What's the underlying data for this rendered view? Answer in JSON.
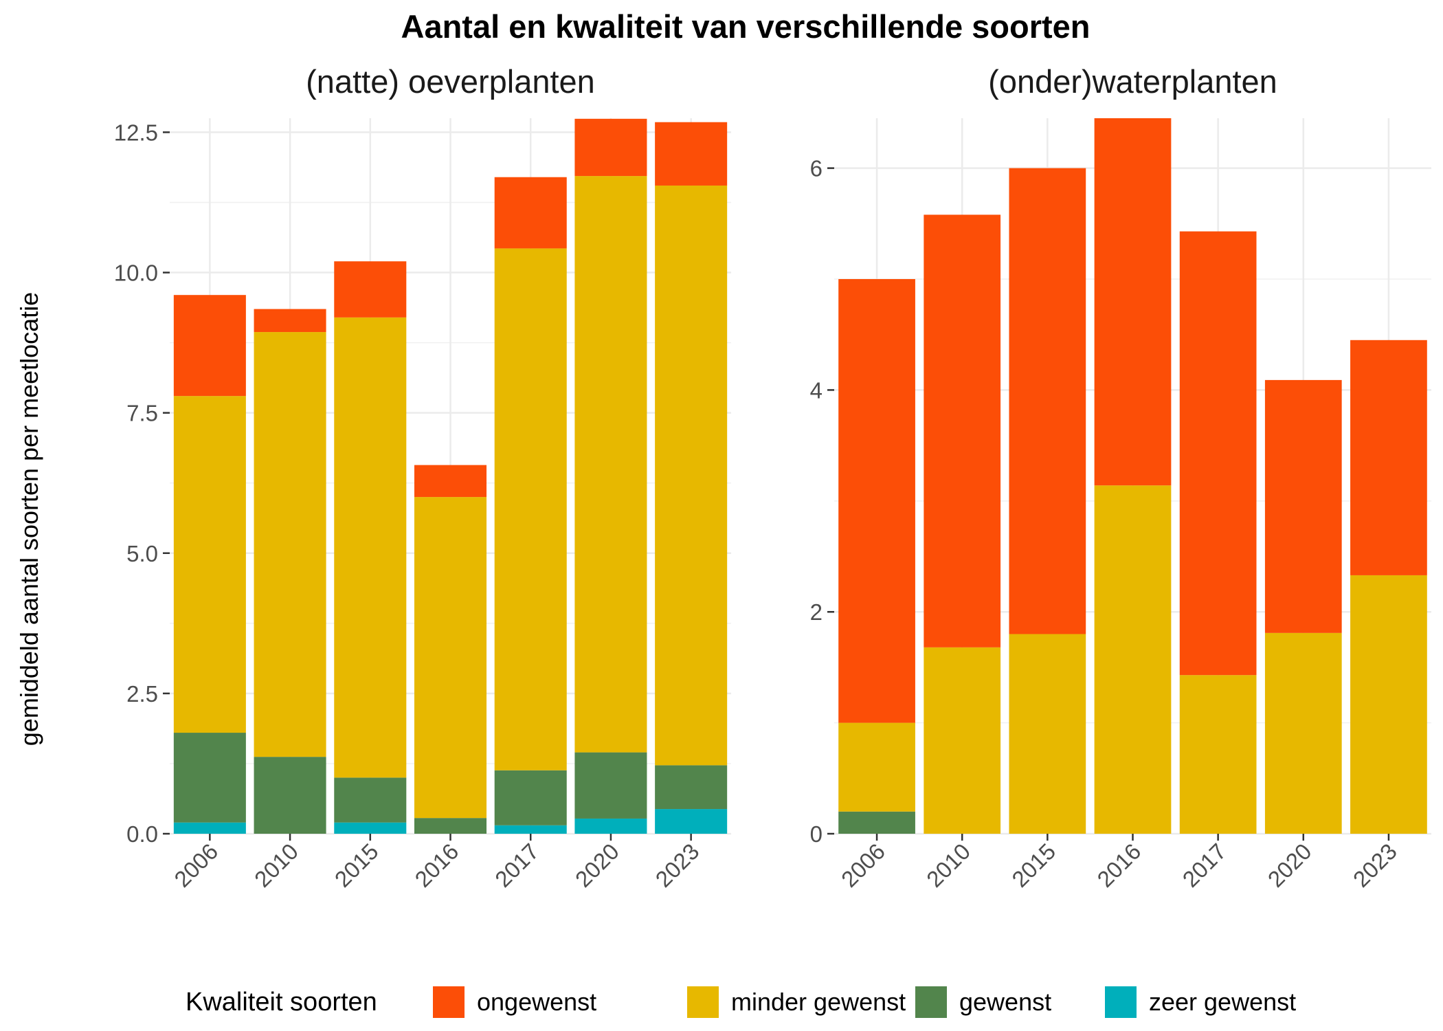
{
  "title": "Aantal en kwaliteit van verschillende soorten",
  "ylabel": "gemiddeld aantal soorten per meetlocatie",
  "legend": {
    "title": "Kwaliteit soorten",
    "placement": "bottom",
    "items": [
      {
        "label": "ongewenst",
        "color": "#FC4E07"
      },
      {
        "label": "minder gewenst",
        "color": "#E7B800"
      },
      {
        "label": "gewenst",
        "color": "#52854C"
      },
      {
        "label": "zeer gewenst",
        "color": "#00AFBB"
      }
    ]
  },
  "chart_data": [
    {
      "type": "bar",
      "stacked": true,
      "title": "(natte) oeverplanten",
      "categories": [
        "2006",
        "2010",
        "2015",
        "2016",
        "2017",
        "2020",
        "2023"
      ],
      "ylim": [
        0,
        12.75
      ],
      "yticks": [
        "0.0",
        "2.5",
        "5.0",
        "7.5",
        "10.0",
        "12.5"
      ],
      "ytick_values": [
        0,
        2.5,
        5,
        7.5,
        10,
        12.5
      ],
      "grid": true,
      "series": [
        {
          "name": "zeer gewenst",
          "color": "#00AFBB",
          "values": [
            0.2,
            0,
            0.2,
            0,
            0.15,
            0.27,
            0.44
          ]
        },
        {
          "name": "gewenst",
          "color": "#52854C",
          "values": [
            1.6,
            1.37,
            0.8,
            0.28,
            0.98,
            1.18,
            0.78
          ]
        },
        {
          "name": "minder gewenst",
          "color": "#E7B800",
          "values": [
            6.0,
            7.57,
            8.2,
            5.72,
            9.3,
            10.27,
            10.33
          ]
        },
        {
          "name": "ongewenst",
          "color": "#FC4E07",
          "values": [
            1.8,
            0.41,
            1.0,
            0.57,
            1.27,
            1.02,
            1.13
          ]
        }
      ]
    },
    {
      "type": "bar",
      "stacked": true,
      "title": "(onder)waterplanten",
      "categories": [
        "2006",
        "2010",
        "2015",
        "2016",
        "2017",
        "2020",
        "2023"
      ],
      "ylim": [
        0,
        6.45
      ],
      "yticks": [
        "0",
        "2",
        "4",
        "6"
      ],
      "ytick_values": [
        0,
        2,
        4,
        6
      ],
      "grid": true,
      "series": [
        {
          "name": "zeer gewenst",
          "color": "#00AFBB",
          "values": [
            0,
            0,
            0,
            0,
            0,
            0,
            0
          ]
        },
        {
          "name": "gewenst",
          "color": "#52854C",
          "values": [
            0.2,
            0,
            0,
            0,
            0,
            0,
            0
          ]
        },
        {
          "name": "minder gewenst",
          "color": "#E7B800",
          "values": [
            0.8,
            1.68,
            1.8,
            3.14,
            1.43,
            1.81,
            2.33
          ]
        },
        {
          "name": "ongewenst",
          "color": "#FC4E07",
          "values": [
            4.0,
            3.9,
            4.2,
            3.31,
            4.0,
            2.28,
            2.12
          ]
        }
      ]
    }
  ]
}
